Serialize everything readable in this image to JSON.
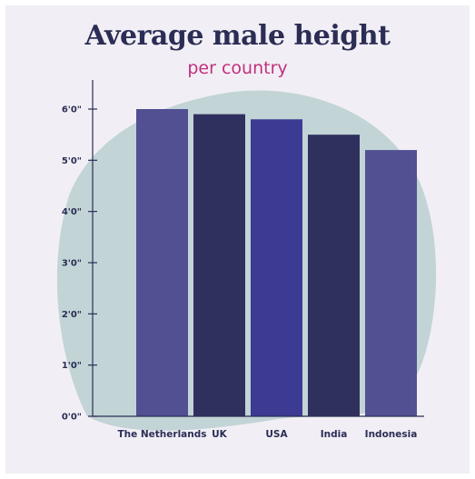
{
  "chart_data": {
    "type": "bar",
    "title": "Average male height",
    "subtitle": "per country",
    "xlabel": "",
    "ylabel": "",
    "categories": [
      "The Netherlands",
      "UK",
      "USA",
      "India",
      "Indonesia"
    ],
    "values": [
      6.0,
      5.9,
      5.8,
      5.5,
      5.2
    ],
    "value_unit": "feet",
    "ylim": [
      0,
      6
    ],
    "yticks": [
      0,
      1,
      2,
      3,
      4,
      5,
      6
    ],
    "ytick_labels": [
      "0'0\"",
      "1'0\"",
      "2'0\"",
      "3'0\"",
      "4'0\"",
      "5'0\"",
      "6'0\""
    ],
    "grid": false,
    "legend": "none",
    "colors": [
      "#524f93",
      "#30305e",
      "#3d3a93",
      "#30305e",
      "#524f93"
    ],
    "background_blob_color": "#c2d4d6"
  }
}
